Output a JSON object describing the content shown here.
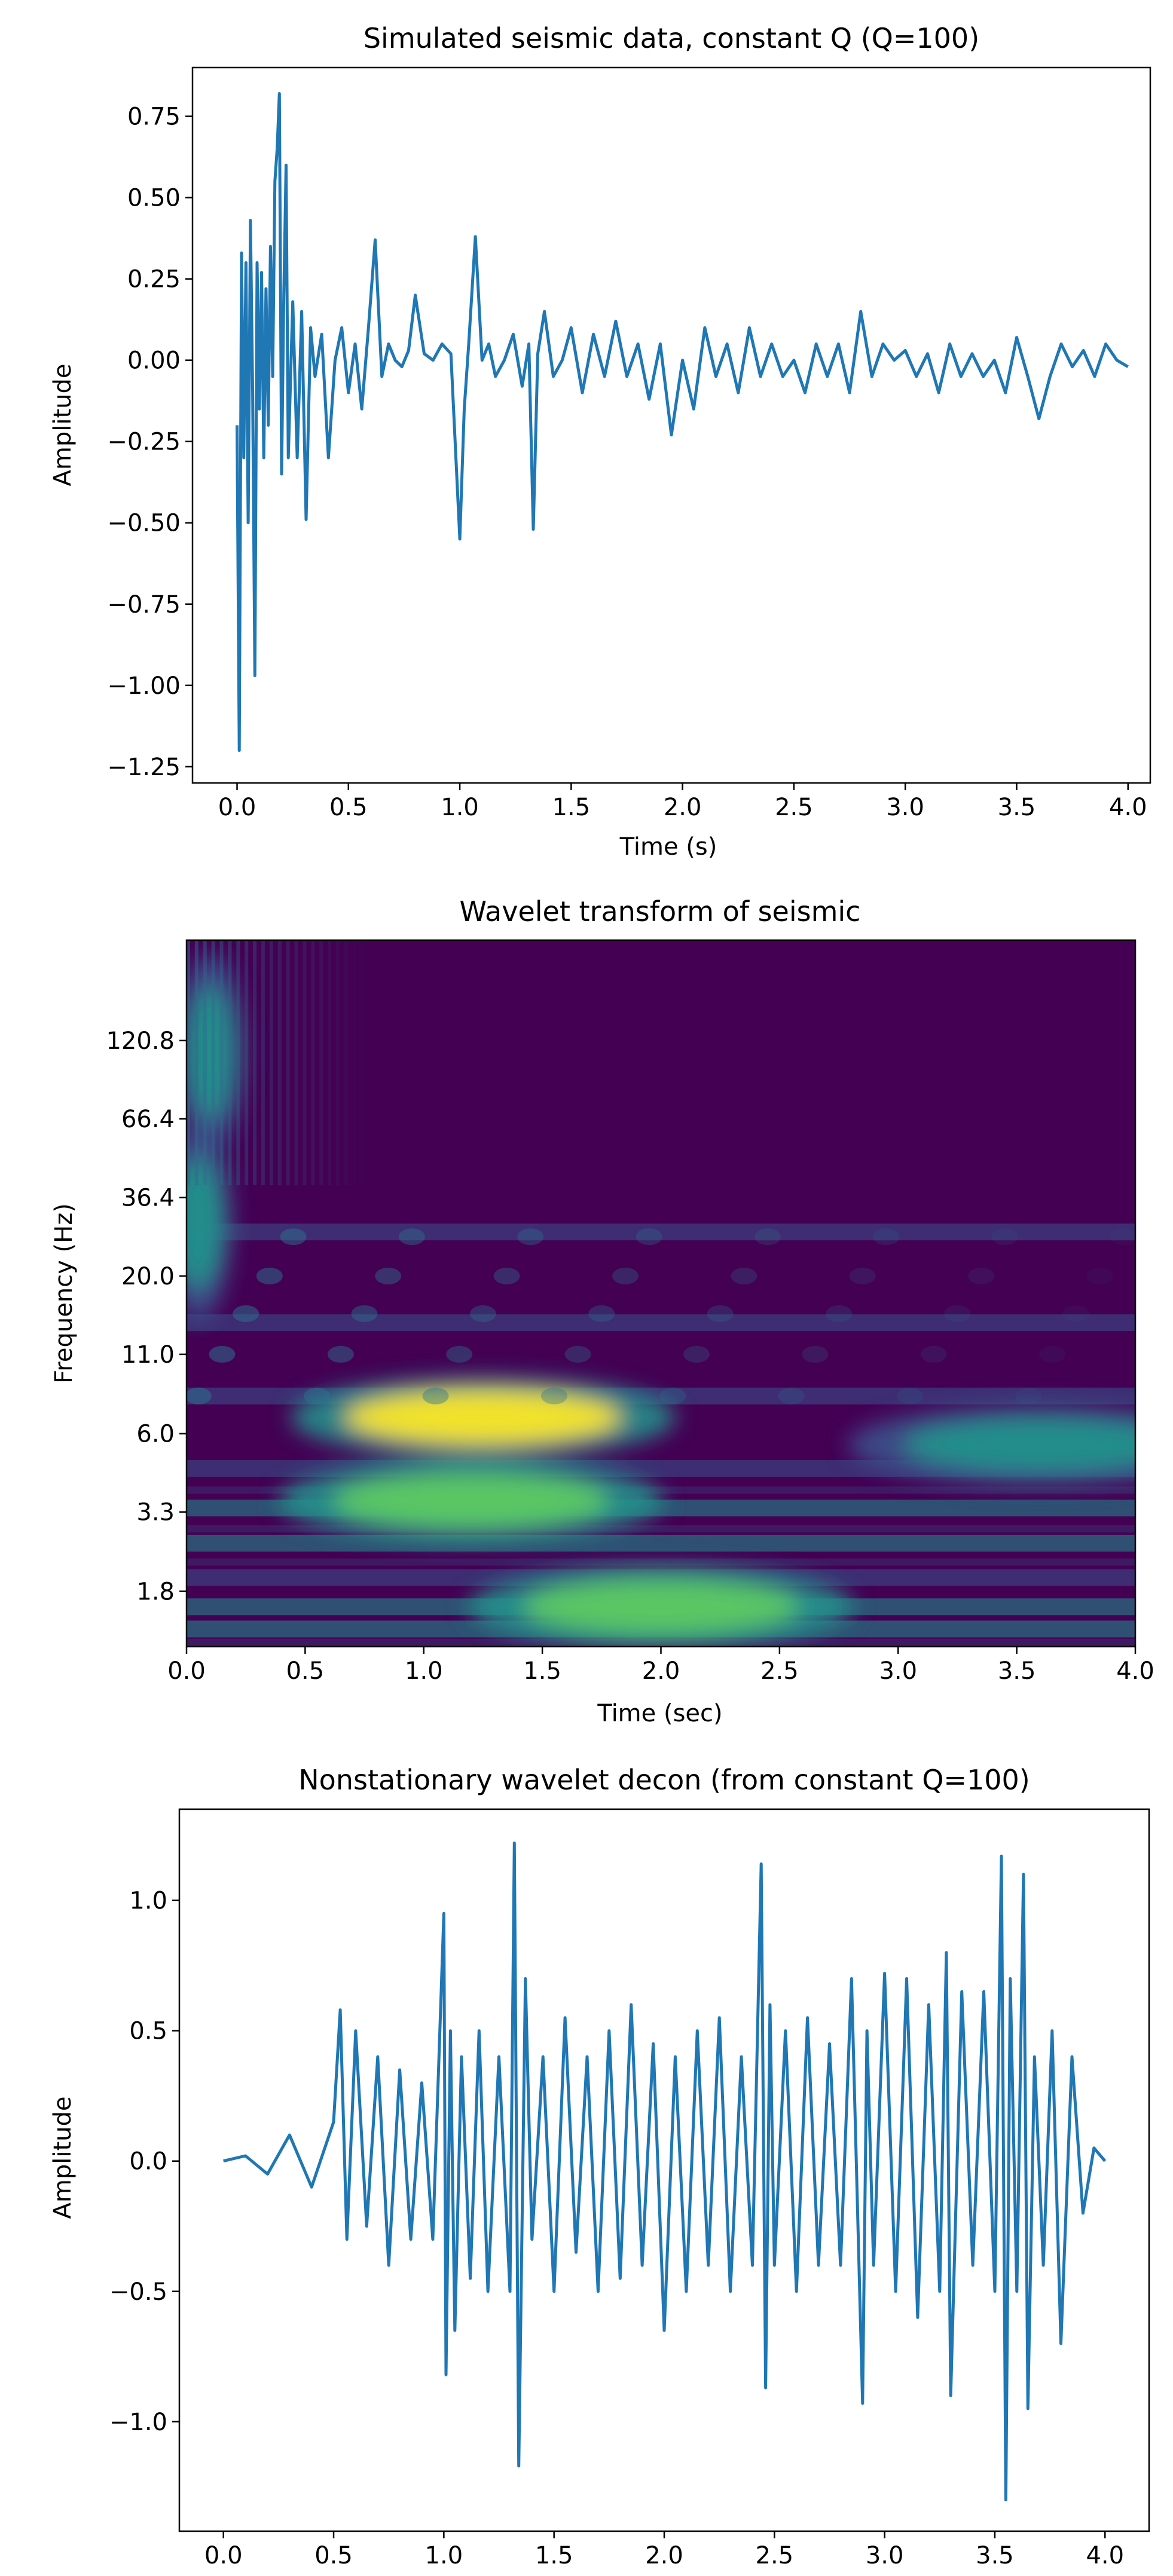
{
  "chart_data": [
    {
      "type": "line",
      "title": "Simulated seismic data, constant Q (Q=100)",
      "xlabel": "Time (s)",
      "ylabel": "Amplitude",
      "xlim": [
        -0.2,
        4.1
      ],
      "ylim": [
        -1.3,
        0.9
      ],
      "xticks": [
        0.0,
        0.5,
        1.0,
        1.5,
        2.0,
        2.5,
        3.0,
        3.5,
        4.0
      ],
      "xtick_labels": [
        "0.0",
        "0.5",
        "1.0",
        "1.5",
        "2.0",
        "2.5",
        "3.0",
        "3.5",
        "4.0"
      ],
      "yticks": [
        0.75,
        0.5,
        0.25,
        0.0,
        -0.25,
        -0.5,
        -0.75,
        -1.0,
        -1.25
      ],
      "ytick_labels": [
        "0.75",
        "0.50",
        "0.25",
        "0.00",
        "−0.25",
        "−0.50",
        "−0.75",
        "−1.00",
        "−1.25"
      ],
      "grid": false,
      "color": "#1f77b4",
      "series": [
        {
          "x": [
            0.0,
            0.01,
            0.02,
            0.03,
            0.04,
            0.05,
            0.06,
            0.07,
            0.08,
            0.09,
            0.1,
            0.11,
            0.12,
            0.13,
            0.14,
            0.15,
            0.16,
            0.17,
            0.18,
            0.19,
            0.2,
            0.21,
            0.22,
            0.23,
            0.25,
            0.27,
            0.29,
            0.31,
            0.33,
            0.35,
            0.38,
            0.41,
            0.44,
            0.47,
            0.5,
            0.53,
            0.56,
            0.59,
            0.62,
            0.65,
            0.68,
            0.71,
            0.74,
            0.77,
            0.8,
            0.84,
            0.88,
            0.92,
            0.96,
            1.0,
            1.02,
            1.04,
            1.07,
            1.1,
            1.13,
            1.16,
            1.2,
            1.24,
            1.28,
            1.31,
            1.33,
            1.35,
            1.38,
            1.42,
            1.46,
            1.5,
            1.55,
            1.6,
            1.65,
            1.7,
            1.75,
            1.8,
            1.85,
            1.9,
            1.95,
            2.0,
            2.05,
            2.1,
            2.15,
            2.2,
            2.25,
            2.3,
            2.35,
            2.4,
            2.45,
            2.5,
            2.55,
            2.6,
            2.65,
            2.7,
            2.75,
            2.8,
            2.85,
            2.9,
            2.95,
            3.0,
            3.05,
            3.1,
            3.15,
            3.2,
            3.25,
            3.3,
            3.35,
            3.4,
            3.45,
            3.5,
            3.55,
            3.6,
            3.65,
            3.7,
            3.75,
            3.8,
            3.85,
            3.9,
            3.95,
            4.0
          ],
          "y": [
            -0.2,
            -1.2,
            0.33,
            -0.3,
            0.3,
            -0.5,
            0.43,
            -0.1,
            -0.97,
            0.3,
            -0.15,
            0.27,
            -0.3,
            0.22,
            -0.2,
            0.35,
            -0.05,
            0.55,
            0.65,
            0.82,
            -0.35,
            0.2,
            0.6,
            -0.3,
            0.18,
            -0.3,
            0.15,
            -0.49,
            0.1,
            -0.05,
            0.08,
            -0.3,
            0.0,
            0.1,
            -0.1,
            0.05,
            -0.15,
            0.1,
            0.37,
            -0.05,
            0.05,
            0.0,
            -0.02,
            0.03,
            0.2,
            0.02,
            0.0,
            0.05,
            0.02,
            -0.55,
            -0.15,
            0.05,
            0.38,
            0.0,
            0.05,
            -0.05,
            0.0,
            0.08,
            -0.08,
            0.05,
            -0.52,
            0.02,
            0.15,
            -0.05,
            0.0,
            0.1,
            -0.1,
            0.08,
            -0.05,
            0.12,
            -0.05,
            0.05,
            -0.12,
            0.05,
            -0.23,
            0.0,
            -0.15,
            0.1,
            -0.05,
            0.05,
            -0.1,
            0.1,
            -0.05,
            0.05,
            -0.05,
            0.0,
            -0.1,
            0.05,
            -0.05,
            0.05,
            -0.1,
            0.15,
            -0.05,
            0.05,
            0.0,
            0.03,
            -0.05,
            0.02,
            -0.1,
            0.05,
            -0.05,
            0.02,
            -0.05,
            0.0,
            -0.1,
            0.07,
            -0.05,
            -0.18,
            -0.05,
            0.05,
            -0.02,
            0.03,
            -0.05,
            0.05,
            0.0,
            -0.02
          ]
        }
      ]
    },
    {
      "type": "heatmap",
      "title": "Wavelet transform of seismic",
      "xlabel": "Time (sec)",
      "ylabel": "Frequency (Hz)",
      "xlim": [
        0.0,
        4.0
      ],
      "xticks": [
        0.0,
        0.5,
        1.0,
        1.5,
        2.0,
        2.5,
        3.0,
        3.5,
        4.0
      ],
      "xtick_labels": [
        "0.0",
        "0.5",
        "1.0",
        "1.5",
        "2.0",
        "2.5",
        "3.0",
        "3.5",
        "4.0"
      ],
      "yscale": "log",
      "yticks": [
        120.8,
        66.4,
        36.4,
        20.0,
        11.0,
        6.0,
        3.3,
        1.8
      ],
      "ytick_labels": [
        "120.8",
        "66.4",
        "36.4",
        "20.0",
        "11.0",
        "6.0",
        "3.3",
        "1.8"
      ],
      "colormap": "viridis",
      "blobs": [
        {
          "t": 1.25,
          "f": 6.8,
          "intensity": 1.0
        },
        {
          "t": 1.2,
          "f": 3.6,
          "intensity": 0.75
        },
        {
          "t": 2.0,
          "f": 1.6,
          "intensity": 0.72
        },
        {
          "t": 3.6,
          "f": 5.5,
          "intensity": 0.55
        },
        {
          "t": 0.05,
          "f": 30.0,
          "intensity": 0.55
        },
        {
          "t": 0.1,
          "f": 110.0,
          "intensity": 0.5
        }
      ]
    },
    {
      "type": "line",
      "title": "Nonstationary wavelet decon (from constant Q=100)",
      "xlabel": "",
      "ylabel": "Amplitude",
      "xlim": [
        -0.2,
        4.2
      ],
      "ylim": [
        -1.42,
        1.35
      ],
      "xticks": [
        0.0,
        0.5,
        1.0,
        1.5,
        2.0,
        2.5,
        3.0,
        3.5,
        4.0
      ],
      "xtick_labels": [
        "0.0",
        "0.5",
        "1.0",
        "1.5",
        "2.0",
        "2.5",
        "3.0",
        "3.5",
        "4.0"
      ],
      "yticks": [
        1.0,
        0.5,
        0.0,
        -0.5,
        -1.0
      ],
      "ytick_labels": [
        "1.0",
        "0.5",
        "0.0",
        "−0.5",
        "−1.0"
      ],
      "grid": false,
      "color": "#1f77b4",
      "series": [
        {
          "x": [
            0.0,
            0.1,
            0.2,
            0.3,
            0.4,
            0.5,
            0.53,
            0.56,
            0.6,
            0.65,
            0.7,
            0.75,
            0.8,
            0.85,
            0.9,
            0.95,
            1.0,
            1.01,
            1.03,
            1.05,
            1.08,
            1.12,
            1.16,
            1.2,
            1.25,
            1.3,
            1.32,
            1.34,
            1.37,
            1.4,
            1.45,
            1.5,
            1.55,
            1.6,
            1.65,
            1.7,
            1.75,
            1.8,
            1.85,
            1.9,
            1.95,
            2.0,
            2.05,
            2.1,
            2.15,
            2.2,
            2.25,
            2.3,
            2.35,
            2.4,
            2.44,
            2.46,
            2.48,
            2.5,
            2.55,
            2.6,
            2.65,
            2.7,
            2.75,
            2.8,
            2.85,
            2.9,
            2.92,
            2.95,
            3.0,
            3.05,
            3.1,
            3.15,
            3.2,
            3.25,
            3.28,
            3.3,
            3.35,
            3.4,
            3.45,
            3.5,
            3.53,
            3.55,
            3.57,
            3.6,
            3.63,
            3.65,
            3.68,
            3.72,
            3.76,
            3.8,
            3.85,
            3.9,
            3.95,
            4.0
          ],
          "y": [
            0.0,
            0.02,
            -0.05,
            0.1,
            -0.1,
            0.15,
            0.58,
            -0.3,
            0.5,
            -0.25,
            0.4,
            -0.4,
            0.35,
            -0.3,
            0.3,
            -0.3,
            0.95,
            -0.82,
            0.5,
            -0.65,
            0.4,
            -0.45,
            0.5,
            -0.5,
            0.4,
            -0.5,
            1.22,
            -1.17,
            0.7,
            -0.3,
            0.4,
            -0.5,
            0.55,
            -0.35,
            0.4,
            -0.5,
            0.5,
            -0.45,
            0.6,
            -0.4,
            0.45,
            -0.65,
            0.4,
            -0.5,
            0.5,
            -0.4,
            0.55,
            -0.5,
            0.4,
            -0.4,
            1.14,
            -0.87,
            0.6,
            -0.4,
            0.5,
            -0.5,
            0.55,
            -0.4,
            0.45,
            -0.4,
            0.7,
            -0.93,
            0.5,
            -0.4,
            0.72,
            -0.5,
            0.7,
            -0.6,
            0.6,
            -0.5,
            0.8,
            -0.9,
            0.65,
            -0.4,
            0.65,
            -0.5,
            1.17,
            -1.3,
            0.7,
            -0.5,
            1.1,
            -0.95,
            0.4,
            -0.4,
            0.5,
            -0.7,
            0.4,
            -0.2,
            0.05,
            0.0
          ]
        }
      ]
    }
  ]
}
